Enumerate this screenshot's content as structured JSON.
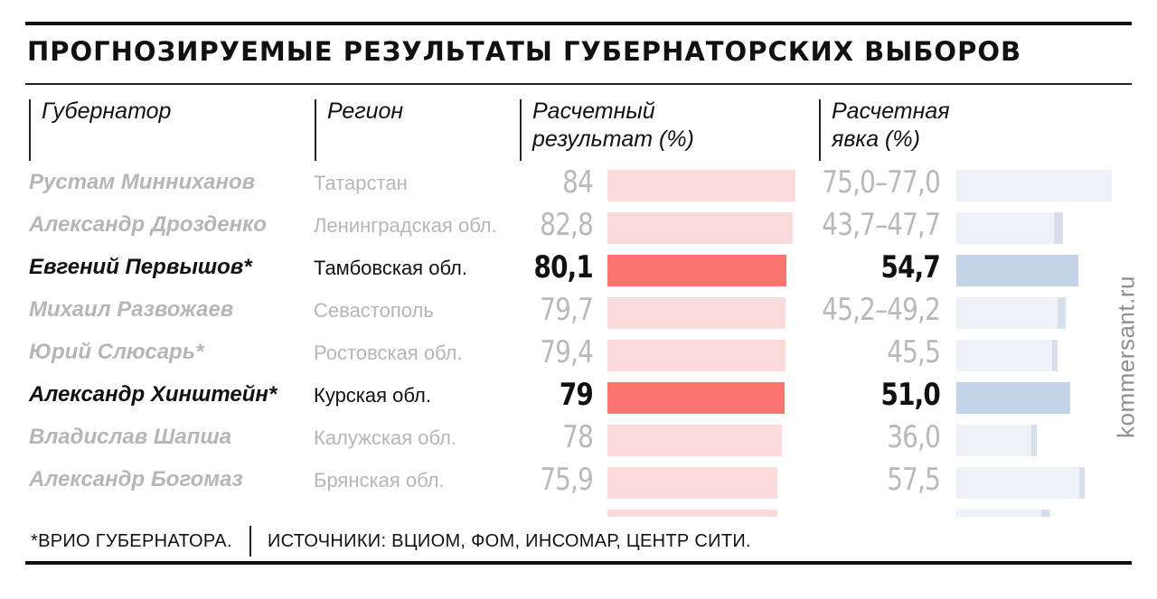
{
  "title": "ПРОГНОЗИРУЕМЫЕ РЕЗУЛЬТАТЫ ГУБЕРНАТОРСКИХ ВЫБОРОВ",
  "columns": {
    "governor": "Губернатор",
    "region": "Регион",
    "result_line1": "Расчетный",
    "result_line2": "результат (%)",
    "turnout_line1": "Расчетная",
    "turnout_line2": "явка (%)"
  },
  "footnote": "*ВРИО ГУБЕРНАТОРА.",
  "sources": "ИСТОЧНИКИ: ВЦИОМ, ФОМ, ИНСОМАР, ЦЕНТР СИТИ.",
  "credit": "kommersant.ru",
  "colors": {
    "result_highlight": "#fa7470",
    "result_dim": "#fadada",
    "turnout_highlight": "#c3d4e8",
    "turnout_dim": "#eef2f8",
    "text_dim": "#b6b6b6"
  },
  "chart_data": {
    "type": "bar",
    "categories": [
      "Рустам Минниханов",
      "Александр Дрозденко",
      "Евгений Первышов*",
      "Михаил Развожаев",
      "Юрий Слюсарь*",
      "Александр Хинштейн*",
      "Владислав Шапша",
      "Александр Богомаз",
      ""
    ],
    "regions": [
      "Татарстан",
      "Ленинградская обл.",
      "Тамбовская обл.",
      "Севастополь",
      "Ростовская обл.",
      "Курская обл.",
      "Калужская обл.",
      "Брянская обл.",
      ""
    ],
    "highlighted": [
      false,
      false,
      true,
      false,
      false,
      true,
      false,
      false,
      false
    ],
    "series": [
      {
        "name": "Расчетный результат (%)",
        "values": [
          84,
          82.8,
          80.1,
          79.7,
          79.4,
          79,
          78,
          75.9,
          75.9
        ],
        "labels": [
          "84",
          "82,8",
          "80,1",
          "79,7",
          "79,4",
          "79",
          "78",
          "75,9",
          ""
        ]
      },
      {
        "name": "Расчетная явка (%)",
        "values": [
          [
            75.0,
            77.0
          ],
          [
            43.7,
            47.7
          ],
          [
            54.7,
            54.7
          ],
          [
            45.2,
            49.2
          ],
          [
            45.5,
            45.5
          ],
          [
            51.0,
            51.0
          ],
          [
            36.0,
            36.0
          ],
          [
            57.5,
            57.5
          ],
          [
            38.0,
            42.0
          ]
        ],
        "labels": [
          "75,0–77,0",
          "43,7–47,7",
          "54,7",
          "45,2–49,2",
          "45,5",
          "51,0",
          "36,0",
          "57,5",
          ""
        ]
      }
    ],
    "result_max": 84,
    "turnout_max": 77
  }
}
